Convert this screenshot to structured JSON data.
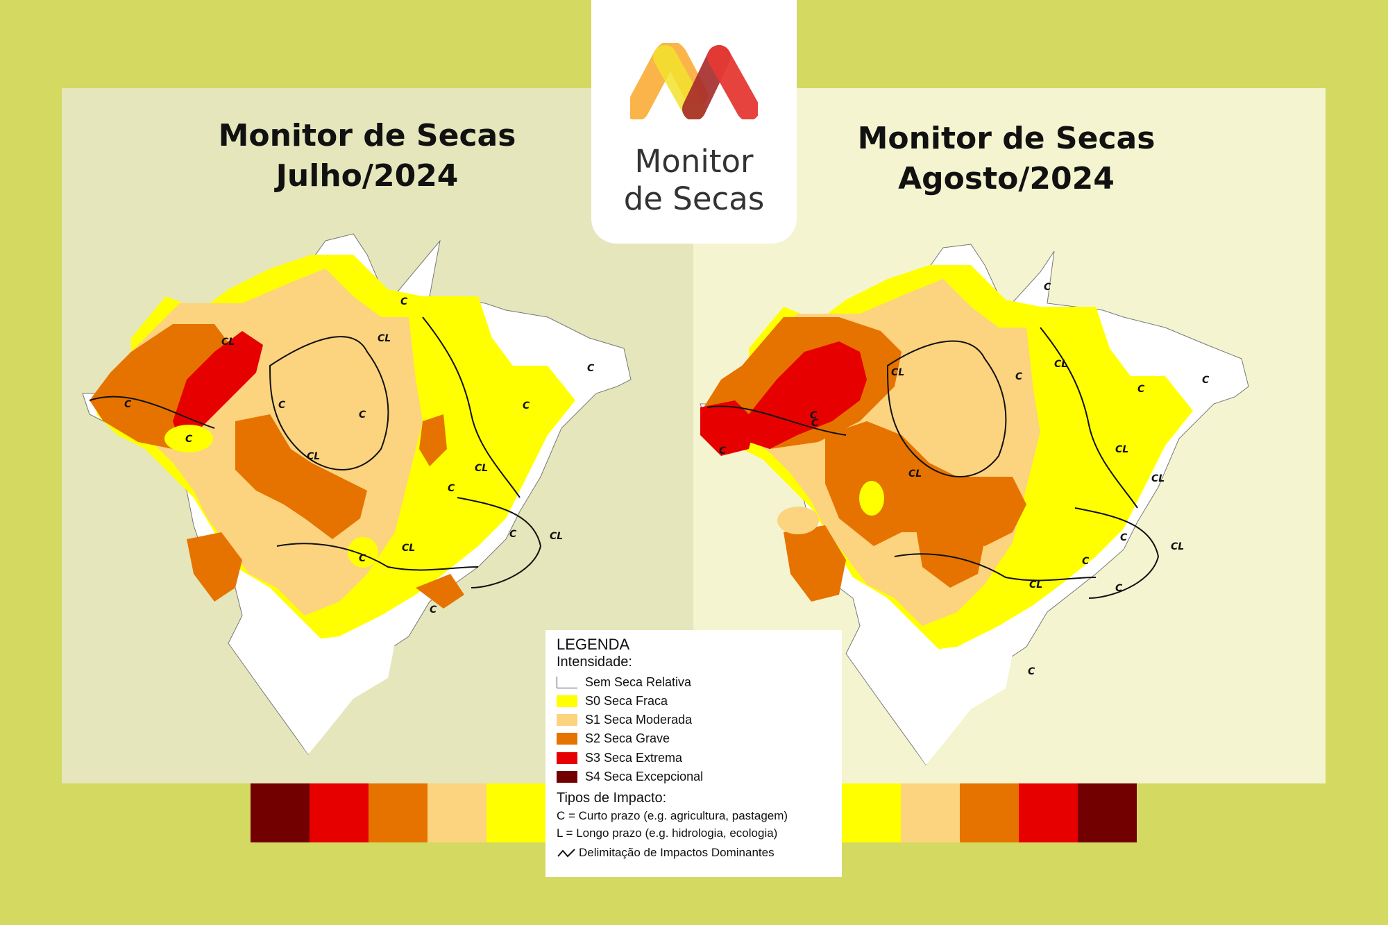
{
  "maps": [
    {
      "title_line1": "Monitor de Secas",
      "title_line2": "Julho/2024"
    },
    {
      "title_line1": "Monitor de Secas",
      "title_line2": "Agosto/2024"
    }
  ],
  "logo": {
    "line1": "Monitor",
    "line2": "de Secas",
    "icon": "m-logo-icon"
  },
  "legend": {
    "title": "LEGENDA",
    "intensity_title": "Intensidade:",
    "items": [
      {
        "label": "Sem Seca Relativa",
        "color": "#ffffff"
      },
      {
        "label": "S0 Seca Fraca",
        "color": "#ffff00"
      },
      {
        "label": "S1 Seca Moderada",
        "color": "#fcd37f"
      },
      {
        "label": "S2 Seca Grave",
        "color": "#e67300"
      },
      {
        "label": "S3 Seca Extrema",
        "color": "#e60000"
      },
      {
        "label": "S4 Seca Excepcional",
        "color": "#730000"
      }
    ],
    "impact_title": "Tipos de Impacto:",
    "impact_short": "C = Curto prazo (e.g. agricultura, pastagem)",
    "impact_long": "L = Longo prazo (e.g. hidrologia, ecologia)",
    "impact_line": "Delimitação de Impactos Dominantes"
  },
  "impact_labels": {
    "short": "C",
    "short_long": "CL"
  },
  "colors": {
    "background": "#d4d962",
    "s0": "#ffff00",
    "s1": "#fcd37f",
    "s2": "#e67300",
    "s3": "#e60000",
    "s4": "#730000"
  }
}
